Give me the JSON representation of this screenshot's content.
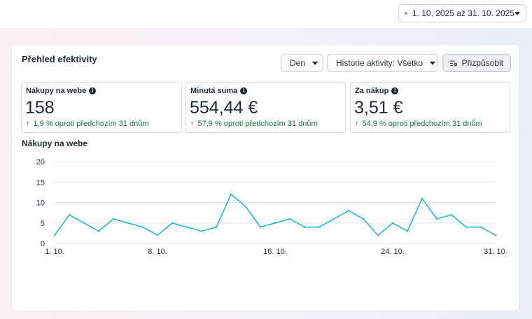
{
  "header": {
    "date_range": "1. 10. 2025 až 31. 10. 2025",
    "calendar_icon": "calendar-icon"
  },
  "panel": {
    "title": "Přehled efektivity",
    "granularity": "Den",
    "activity_history": "Historie aktivity: Všetko",
    "customize": "Přizpůsobit",
    "customize_icon": "sliders-settings-icon"
  },
  "kpis": [
    {
      "label": "Nákupy na webe",
      "value": "158",
      "change": "1,9 % oproti předchozím 31 dnům"
    },
    {
      "label": "Minutá suma",
      "value": "554,44 €",
      "change": "57,9 % oproti předchozím 31 dnům"
    },
    {
      "label": "Za nákup",
      "value": "3,51 €",
      "change": "54,9 % oproti předchozím 31 dnům"
    }
  ],
  "chart_data": {
    "type": "line",
    "title": "Nákupy na webe",
    "x": [
      "1. 10.",
      "2. 10.",
      "3. 10.",
      "4. 10.",
      "5. 10.",
      "6. 10.",
      "7. 10.",
      "8. 10.",
      "9. 10.",
      "10. 10.",
      "11. 10.",
      "12. 10.",
      "13. 10.",
      "14. 10.",
      "15. 10.",
      "16. 10.",
      "17. 10.",
      "18. 10.",
      "19. 10.",
      "20. 10.",
      "21. 10.",
      "22. 10.",
      "23. 10.",
      "24. 10.",
      "25. 10.",
      "26. 10.",
      "27. 10.",
      "28. 10.",
      "29. 10.",
      "30. 10.",
      "31. 10."
    ],
    "x_tick_labels": [
      "1. 10.",
      "8. 10.",
      "16. 10.",
      "24. 10.",
      "31. 10."
    ],
    "series": [
      {
        "values": [
          2,
          7,
          5,
          3,
          6,
          5,
          4,
          2,
          5,
          4,
          3,
          4,
          12,
          9,
          4,
          5,
          6,
          4,
          4,
          6,
          8,
          6,
          2,
          5,
          3,
          11,
          6,
          7,
          4,
          4,
          2
        ],
        "color": "#1fbfc9"
      }
    ],
    "ylim": [
      0,
      20
    ],
    "yticks": [
      0,
      5,
      10,
      15,
      20
    ],
    "grid": true
  }
}
